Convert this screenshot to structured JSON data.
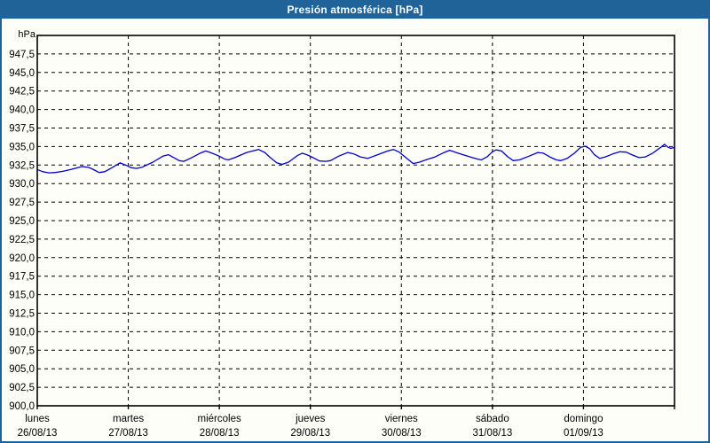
{
  "window": {
    "title": "Presión atmosférica [hPa]"
  },
  "colors": {
    "titlebar_bg": "#1F6398",
    "frame": "#1F6398",
    "background": "#FDFEF8",
    "line": "#0000C8",
    "grid": "#000000",
    "axis": "#000000",
    "text": "#000000",
    "title_text": "#FFFFFF"
  },
  "chart_data": {
    "type": "line",
    "title": "Presión atmosférica [hPa]",
    "ylabel_unit": "hPa",
    "ylim": [
      900,
      950
    ],
    "y_tick_step": 2.5,
    "grid": "dashed",
    "legend": "none",
    "y_ticks": {
      "values": [
        947.5,
        945.0,
        942.5,
        940.0,
        937.5,
        935.0,
        932.5,
        930.0,
        927.5,
        925.0,
        922.5,
        920.0,
        917.5,
        915.0,
        912.5,
        910.0,
        907.5,
        905.0,
        902.5,
        900.0
      ],
      "labels": [
        "947,5",
        "945,0",
        "942,5",
        "940,0",
        "937,5",
        "935,0",
        "932,5",
        "930,0",
        "927,5",
        "925,0",
        "922,5",
        "920,0",
        "917,5",
        "915,0",
        "912,5",
        "910,0",
        "907,5",
        "905,0",
        "902,5",
        "900,0"
      ]
    },
    "x_axis": {
      "span_days": 7,
      "days": [
        {
          "name": "lunes",
          "date": "26/08/13"
        },
        {
          "name": "martes",
          "date": "27/08/13"
        },
        {
          "name": "miércoles",
          "date": "28/08/13"
        },
        {
          "name": "jueves",
          "date": "29/08/13"
        },
        {
          "name": "viernes",
          "date": "30/08/13"
        },
        {
          "name": "sábado",
          "date": "31/08/13"
        },
        {
          "name": "domingo",
          "date": "01/09/13"
        }
      ]
    },
    "series": [
      {
        "name": "Presión atmosférica",
        "color": "#0000C8",
        "points": [
          [
            0.0,
            931.9
          ],
          [
            0.06,
            931.6
          ],
          [
            0.13,
            931.45
          ],
          [
            0.2,
            931.5
          ],
          [
            0.28,
            931.65
          ],
          [
            0.37,
            931.9
          ],
          [
            0.49,
            932.3
          ],
          [
            0.56,
            932.2
          ],
          [
            0.6,
            932.0
          ],
          [
            0.68,
            931.5
          ],
          [
            0.74,
            931.6
          ],
          [
            0.8,
            932.0
          ],
          [
            0.91,
            932.8
          ],
          [
            0.97,
            932.5
          ],
          [
            1.03,
            932.15
          ],
          [
            1.09,
            932.05
          ],
          [
            1.15,
            932.2
          ],
          [
            1.27,
            932.9
          ],
          [
            1.38,
            933.7
          ],
          [
            1.44,
            933.9
          ],
          [
            1.5,
            933.5
          ],
          [
            1.56,
            933.1
          ],
          [
            1.61,
            933.0
          ],
          [
            1.68,
            933.4
          ],
          [
            1.79,
            934.1
          ],
          [
            1.85,
            934.4
          ],
          [
            1.92,
            934.1
          ],
          [
            2.0,
            933.7
          ],
          [
            2.06,
            933.3
          ],
          [
            2.1,
            933.2
          ],
          [
            2.17,
            933.5
          ],
          [
            2.3,
            934.2
          ],
          [
            2.43,
            934.6
          ],
          [
            2.5,
            934.2
          ],
          [
            2.56,
            933.5
          ],
          [
            2.63,
            932.8
          ],
          [
            2.69,
            932.6
          ],
          [
            2.76,
            932.9
          ],
          [
            2.86,
            933.8
          ],
          [
            2.91,
            934.1
          ],
          [
            2.97,
            933.85
          ],
          [
            3.03,
            933.5
          ],
          [
            3.1,
            933.05
          ],
          [
            3.17,
            933.0
          ],
          [
            3.22,
            933.1
          ],
          [
            3.31,
            933.7
          ],
          [
            3.41,
            934.2
          ],
          [
            3.48,
            934.0
          ],
          [
            3.55,
            933.6
          ],
          [
            3.63,
            933.4
          ],
          [
            3.72,
            933.8
          ],
          [
            3.85,
            934.4
          ],
          [
            3.91,
            934.6
          ],
          [
            3.97,
            934.3
          ],
          [
            4.0,
            934.0
          ],
          [
            4.07,
            933.3
          ],
          [
            4.13,
            932.7
          ],
          [
            4.2,
            932.9
          ],
          [
            4.27,
            933.2
          ],
          [
            4.37,
            933.6
          ],
          [
            4.47,
            934.2
          ],
          [
            4.53,
            934.5
          ],
          [
            4.6,
            934.2
          ],
          [
            4.7,
            933.8
          ],
          [
            4.78,
            933.5
          ],
          [
            4.84,
            933.3
          ],
          [
            4.88,
            933.2
          ],
          [
            4.94,
            933.6
          ],
          [
            5.0,
            934.3
          ],
          [
            5.04,
            934.55
          ],
          [
            5.1,
            934.4
          ],
          [
            5.17,
            933.6
          ],
          [
            5.23,
            933.1
          ],
          [
            5.3,
            933.2
          ],
          [
            5.4,
            933.7
          ],
          [
            5.5,
            934.2
          ],
          [
            5.56,
            934.1
          ],
          [
            5.63,
            933.6
          ],
          [
            5.7,
            933.2
          ],
          [
            5.75,
            933.1
          ],
          [
            5.82,
            933.4
          ],
          [
            5.9,
            934.1
          ],
          [
            5.97,
            934.9
          ],
          [
            6.02,
            935.05
          ],
          [
            6.07,
            934.7
          ],
          [
            6.12,
            933.9
          ],
          [
            6.18,
            933.4
          ],
          [
            6.24,
            933.6
          ],
          [
            6.32,
            934.0
          ],
          [
            6.4,
            934.3
          ],
          [
            6.47,
            934.25
          ],
          [
            6.53,
            933.9
          ],
          [
            6.61,
            933.5
          ],
          [
            6.68,
            933.6
          ],
          [
            6.76,
            934.1
          ],
          [
            6.85,
            934.9
          ],
          [
            6.89,
            935.3
          ],
          [
            6.93,
            934.9
          ],
          [
            6.96,
            934.75
          ],
          [
            7.0,
            934.9
          ]
        ]
      }
    ]
  }
}
